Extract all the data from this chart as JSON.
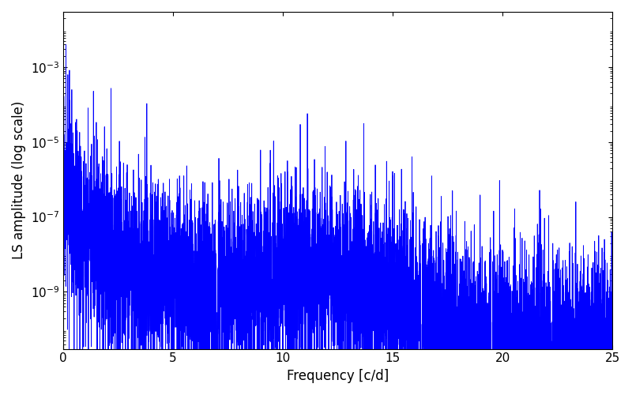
{
  "title": "",
  "xlabel": "Frequency [c/d]",
  "ylabel": "LS amplitude (log scale)",
  "line_color": "#0000ff",
  "line_width": 0.6,
  "xlim": [
    0,
    25
  ],
  "ylim": [
    3e-11,
    0.03
  ],
  "yscale": "log",
  "yticks": [
    1e-09,
    1e-07,
    1e-05,
    0.001
  ],
  "background_color": "#ffffff",
  "seed": 17,
  "n_freqs": 8000,
  "freq_max": 25.0
}
